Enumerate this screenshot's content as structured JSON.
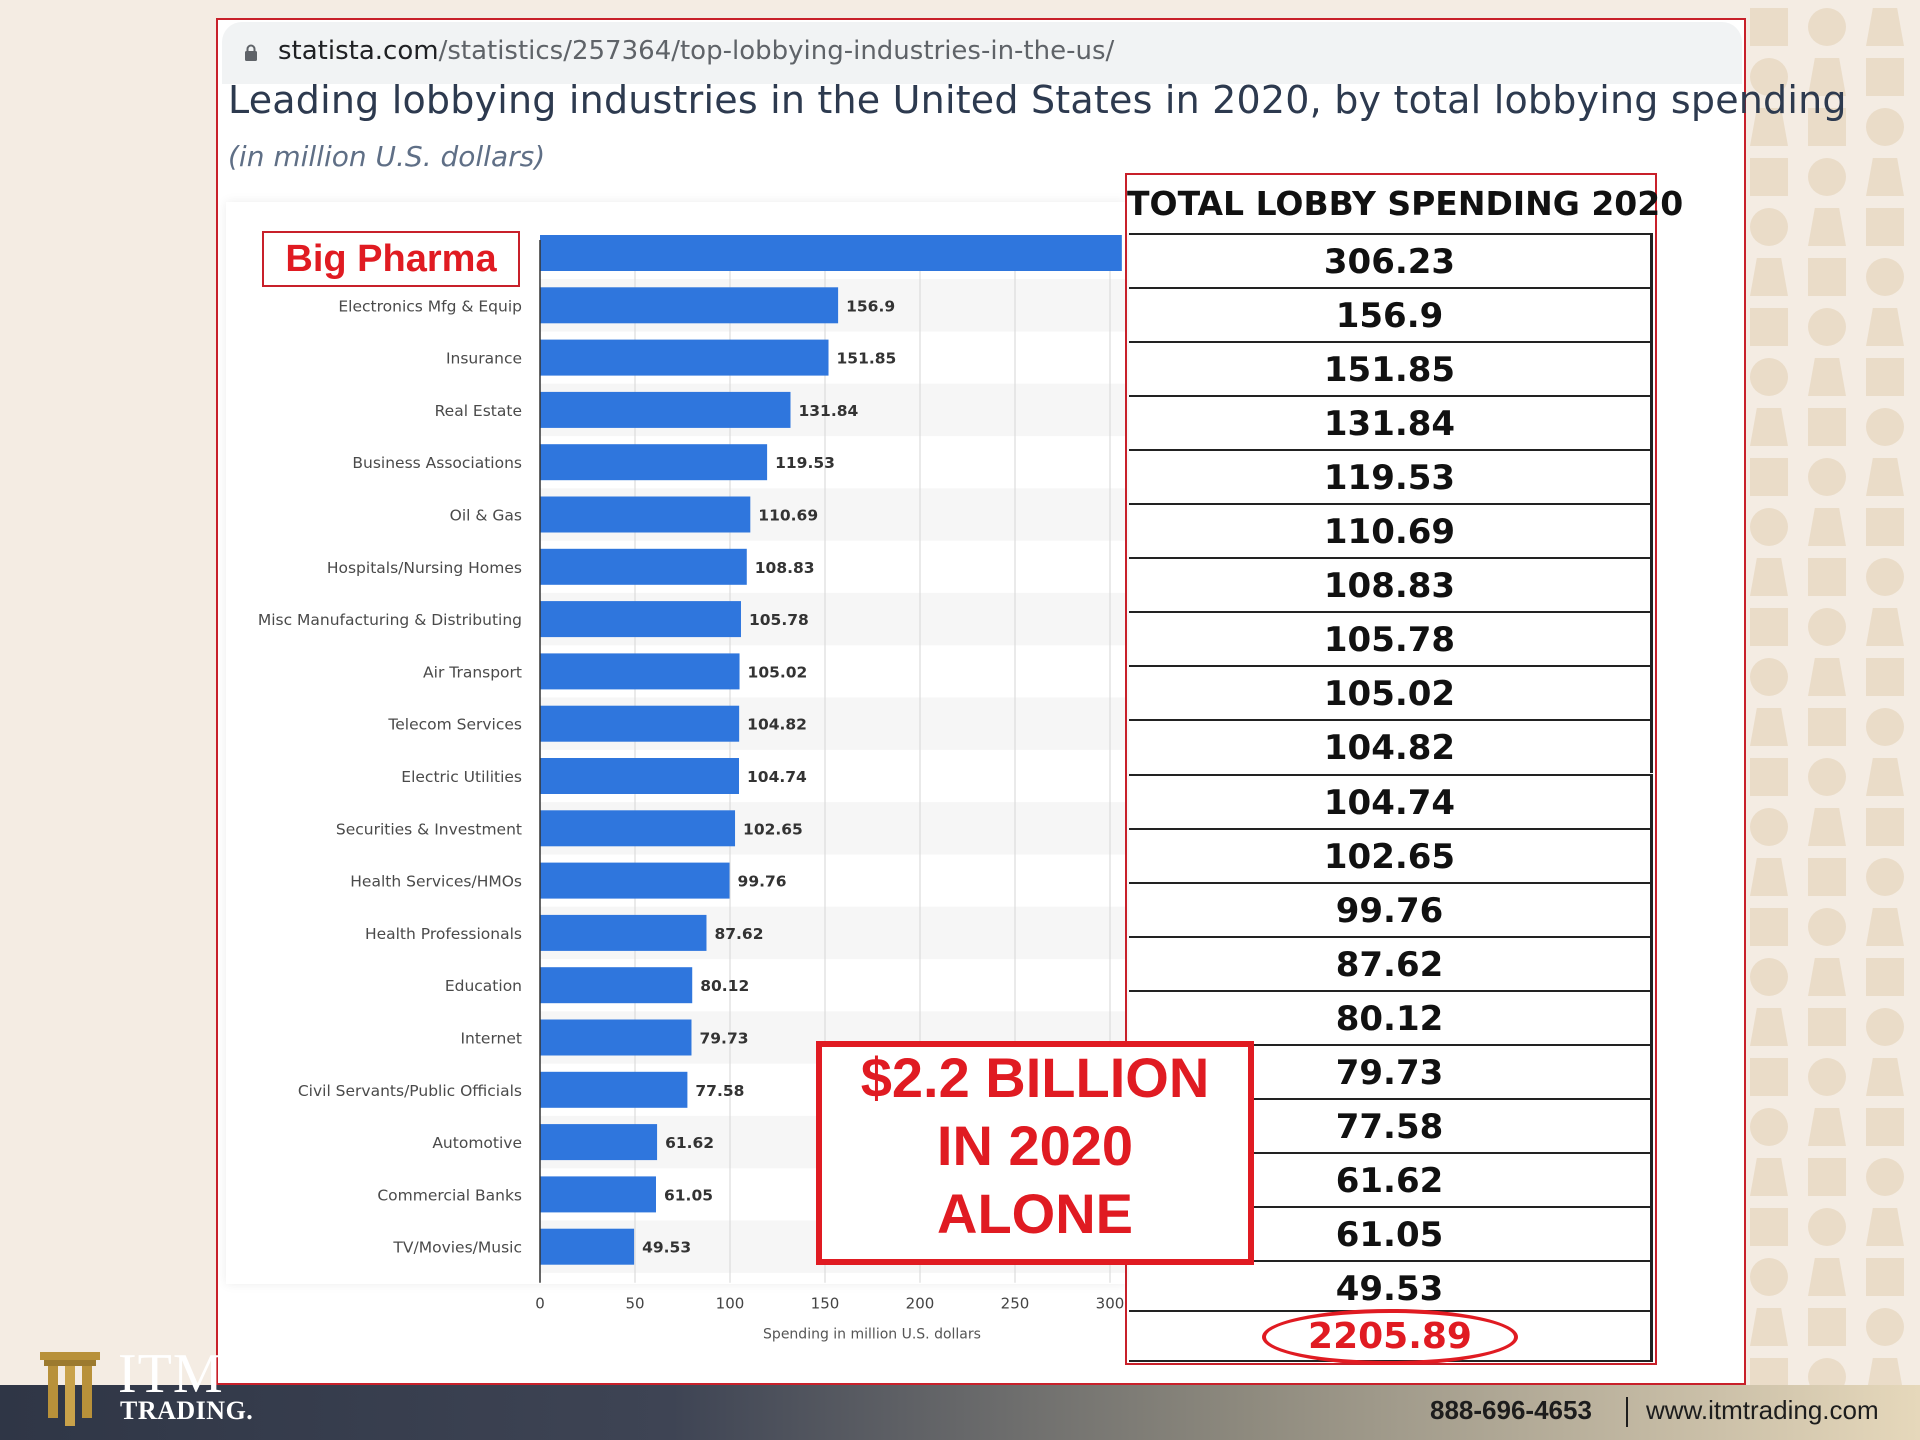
{
  "browser": {
    "url_host": "statista.com",
    "url_path": "/statistics/257364/top-lobbying-industries-in-the-us/"
  },
  "chart_data": {
    "type": "bar",
    "orientation": "horizontal",
    "title": "Leading lobbying industries in the United States in 2020, by total lobbying spending",
    "subtitle": "(in million U.S. dollars)",
    "xlabel": "Spending in million U.S. dollars",
    "xlim": [
      0,
      300
    ],
    "xticks": [
      "0",
      "50",
      "100",
      "150",
      "200",
      "250",
      "300"
    ],
    "grid": true,
    "bar_color": "#2f76dd",
    "categories": [
      "",
      "Electronics Mfg & Equip",
      "Insurance",
      "Real Estate",
      "Business Associations",
      "Oil & Gas",
      "Hospitals/Nursing Homes",
      "Misc Manufacturing & Distributing",
      "Air Transport",
      "Telecom Services",
      "Electric Utilities",
      "Securities & Investment",
      "Health Services/HMOs",
      "Health Professionals",
      "Education",
      "Internet",
      "Civil Servants/Public Officials",
      "Automotive",
      "Commercial Banks",
      "TV/Movies/Music"
    ],
    "values": [
      306.23,
      156.9,
      151.85,
      131.84,
      119.53,
      110.69,
      108.83,
      105.78,
      105.02,
      104.82,
      104.74,
      102.65,
      99.76,
      87.62,
      80.12,
      79.73,
      77.58,
      61.62,
      61.05,
      49.53
    ],
    "data_labels": [
      "",
      "156.9",
      "151.85",
      "131.84",
      "119.53",
      "110.69",
      "108.83",
      "105.78",
      "105.02",
      "104.82",
      "104.74",
      "102.65",
      "99.76",
      "87.62",
      "80.12",
      "79.73",
      "77.58",
      "61.62",
      "61.05",
      "49.53"
    ]
  },
  "annotation": {
    "big_pharma_label": "Big Pharma",
    "callout_lines": [
      "$2.2 BILLION",
      "IN 2020",
      "ALONE"
    ]
  },
  "table": {
    "header": "TOTAL LOBBY SPENDING 2020",
    "rows": [
      "306.23",
      "156.9",
      "151.85",
      "131.84",
      "119.53",
      "110.69",
      "108.83",
      "105.78",
      "105.02",
      "104.82",
      "104.74",
      "102.65",
      "99.76",
      "87.62",
      "80.12",
      "79.73",
      "77.58",
      "61.62",
      "61.05",
      "49.53"
    ],
    "total": "2205.89"
  },
  "footer": {
    "logo_name": "ITM",
    "logo_sub": "TRADING.",
    "phone": "888-696-4653",
    "website": "www.itmtrading.com"
  },
  "colors": {
    "accent_red": "#e01b22",
    "bar_blue": "#2f76dd",
    "logo_gold": "#b8913a"
  }
}
